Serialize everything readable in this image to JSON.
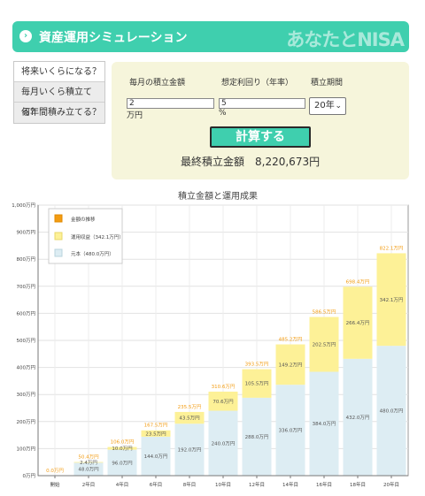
{
  "header": {
    "title": "資産運用シミュレーション",
    "logo": "あなたとNISA"
  },
  "menu": {
    "items": [
      {
        "label": "将来いくらになる？"
      },
      {
        "label": "毎月いくら積立てる？"
      },
      {
        "label": "何年間積み立てる？"
      }
    ]
  },
  "form": {
    "monthly": {
      "label": "毎月の積立金額",
      "value": "2",
      "unit": "万円"
    },
    "rate": {
      "label": "想定利回り（年率）",
      "value": "5",
      "unit": "%"
    },
    "period": {
      "label": "積立期間",
      "value": "20年"
    },
    "calc_label": "計算する",
    "result_label": "最終積立金額",
    "result_value": "8,220,673円"
  },
  "colors": {
    "principal": "#ddedf3",
    "gain": "#fdf197",
    "total_label": "#f39c12",
    "legend_total": "#f39c12",
    "accent": "#3fcfae"
  },
  "chart_data": {
    "type": "bar",
    "title": "積立金額と運用成果",
    "categories": [
      "開始",
      "2年目",
      "4年目",
      "6年目",
      "8年目",
      "10年目",
      "12年目",
      "14年目",
      "16年目",
      "18年目",
      "20年目"
    ],
    "series": [
      {
        "name": "元本（480.0万円）",
        "values": [
          0,
          48.0,
          96.0,
          144.0,
          192.0,
          240.0,
          288.0,
          336.0,
          384.0,
          432.0,
          480.0
        ],
        "labels": [
          "",
          "48.0万円",
          "96.0万円",
          "144.0万円",
          "192.0万円",
          "240.0万円",
          "288.0万円",
          "336.0万円",
          "384.0万円",
          "432.0万円",
          "480.0万円"
        ]
      },
      {
        "name": "運用収益（342.1万円）",
        "values": [
          0,
          2.4,
          10.0,
          23.5,
          43.5,
          70.6,
          105.5,
          149.2,
          202.5,
          266.4,
          342.1
        ],
        "labels": [
          "",
          "2.4万円",
          "10.0万円",
          "23.5万円",
          "43.5万円",
          "70.6万円",
          "105.5万円",
          "149.2万円",
          "202.5万円",
          "266.4万円",
          "342.1万円"
        ]
      }
    ],
    "totals": [
      0,
      50.4,
      106.0,
      167.5,
      235.5,
      310.6,
      393.5,
      485.2,
      586.5,
      698.4,
      822.1
    ],
    "total_labels": [
      "0.0万円",
      "50.4万円",
      "106.0万円",
      "167.5万円",
      "235.5万円",
      "310.6万円",
      "393.5万円",
      "485.2万円",
      "586.5万円",
      "698.4万円",
      "822.1万円"
    ],
    "legend_total": "金額の推移",
    "ylim": [
      0,
      1000
    ],
    "yticks": [
      0,
      100,
      200,
      300,
      400,
      500,
      600,
      700,
      800,
      900,
      1000
    ],
    "ytick_labels": [
      "0万円",
      "100万円",
      "200万円",
      "300万円",
      "400万円",
      "500万円",
      "600万円",
      "700万円",
      "800万円",
      "900万円",
      "1,000万円"
    ],
    "legend_position": "top-left",
    "grid": true
  }
}
